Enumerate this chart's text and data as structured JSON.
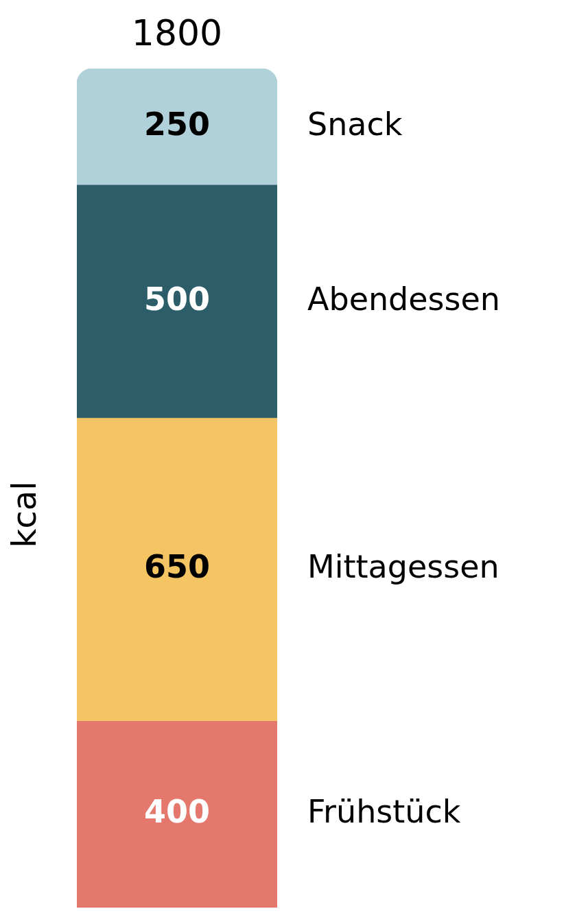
{
  "chart_data": {
    "type": "bar",
    "stacked": true,
    "ylabel": "kcal",
    "categories": [
      null
    ],
    "series": [
      {
        "name": "Frühstück",
        "color": "#e5786d",
        "values": [
          400
        ]
      },
      {
        "name": "Mittagessen",
        "color": "#f5c463",
        "values": [
          650
        ]
      },
      {
        "name": "Abendessen",
        "color": "#2c5d68",
        "values": [
          500
        ]
      },
      {
        "name": "Snack",
        "color": "#b0d0da",
        "values": [
          250
        ]
      }
    ],
    "totals": [
      "1800"
    ],
    "data_labels": true,
    "legend": false
  }
}
